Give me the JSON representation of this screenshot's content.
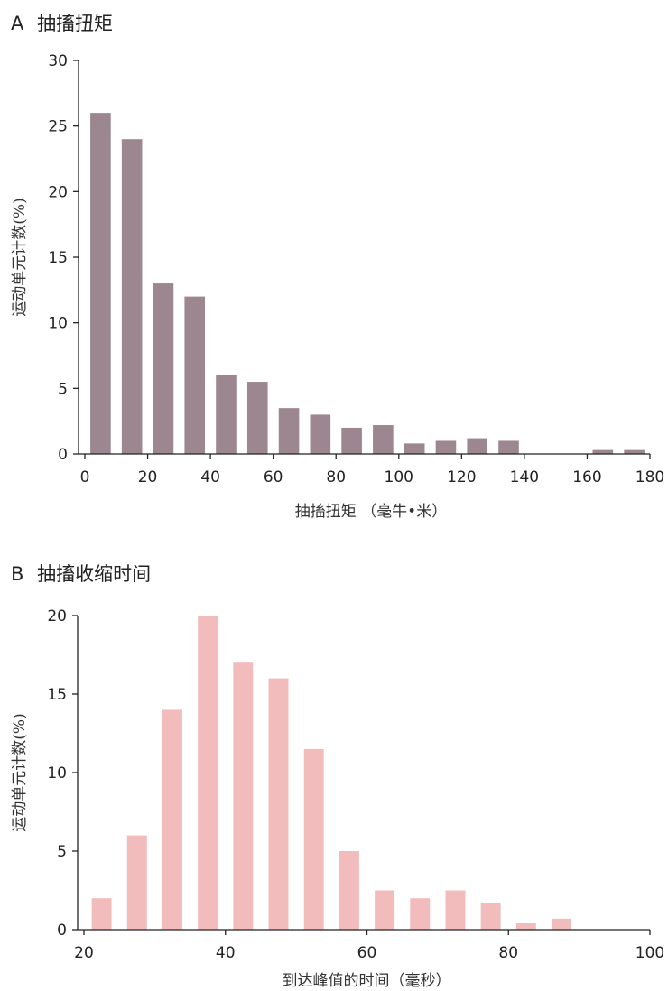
{
  "chart_data": [
    {
      "type": "bar",
      "panel_label": "A",
      "title": "抽搐扭矩",
      "xlabel": "抽搐扭矩 （毫牛•米）",
      "ylabel": "运动单元计数(%)",
      "xlim": [
        0,
        180
      ],
      "ylim": [
        0,
        30
      ],
      "xticks": [
        "0",
        "20",
        "40",
        "60",
        "80",
        "100",
        "120",
        "140",
        "160",
        "180"
      ],
      "yticks": [
        "0",
        "5",
        "10",
        "15",
        "20",
        "25",
        "30"
      ],
      "bar_width": 6.5,
      "color": "#9c8690",
      "x": [
        5,
        15,
        25,
        35,
        45,
        55,
        65,
        75,
        85,
        95,
        105,
        115,
        125,
        135,
        145,
        155,
        165,
        175
      ],
      "values": [
        26,
        24,
        13,
        12,
        6,
        5.5,
        3.5,
        3,
        2,
        2.2,
        0.8,
        1,
        1.2,
        1,
        0,
        0,
        0.3,
        0.3
      ]
    },
    {
      "type": "bar",
      "panel_label": "B",
      "title": "抽搐收缩时间",
      "xlabel": "到达峰值的时间（毫秒）",
      "ylabel": "运动单元计数(%)",
      "xlim": [
        20,
        100
      ],
      "ylim": [
        0,
        20
      ],
      "xticks": [
        "20",
        "40",
        "60",
        "80",
        "100"
      ],
      "yticks": [
        "0",
        "5",
        "10",
        "15",
        "20"
      ],
      "bar_width": 2.8,
      "color": "#f2bcbd",
      "x": [
        22.5,
        27.5,
        32.5,
        37.5,
        42.5,
        47.5,
        52.5,
        57.5,
        62.5,
        67.5,
        72.5,
        77.5,
        82.5,
        87.5
      ],
      "values": [
        2,
        6,
        14,
        20,
        17,
        16,
        11.5,
        5,
        2.5,
        2,
        2.5,
        1.7,
        0.4,
        0.7
      ]
    }
  ]
}
